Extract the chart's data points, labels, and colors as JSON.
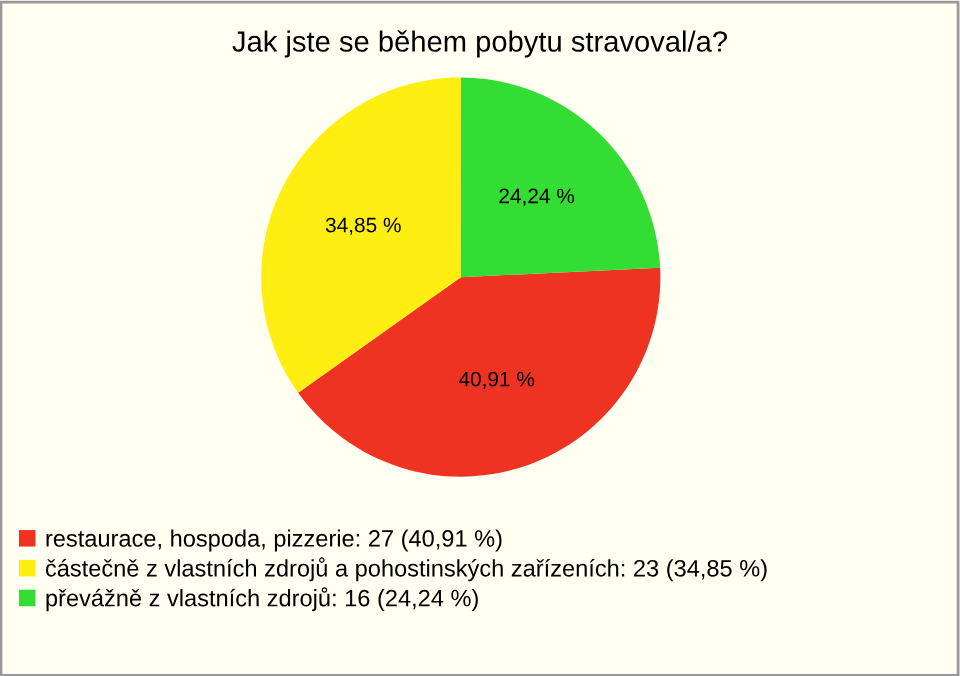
{
  "chart_data": {
    "type": "pie",
    "title": "Jak jste se během pobytu stravoval/a?",
    "categories": [
      "restaurace, hospoda, pizzerie: 27 (40,91 %)",
      "částečně z vlastních zdrojů a pohostinských zařízeních: 23 (34,85 %)",
      "převážně z vlastních zdrojů: 16 (24,24 %)"
    ],
    "values": [
      40.91,
      34.85,
      24.24
    ],
    "value_labels": [
      "40,91 %",
      "34,85 %",
      "24,24 %"
    ],
    "colors": [
      "#ee3322",
      "#ffee11",
      "#33dd33"
    ],
    "legend": "bottom"
  }
}
